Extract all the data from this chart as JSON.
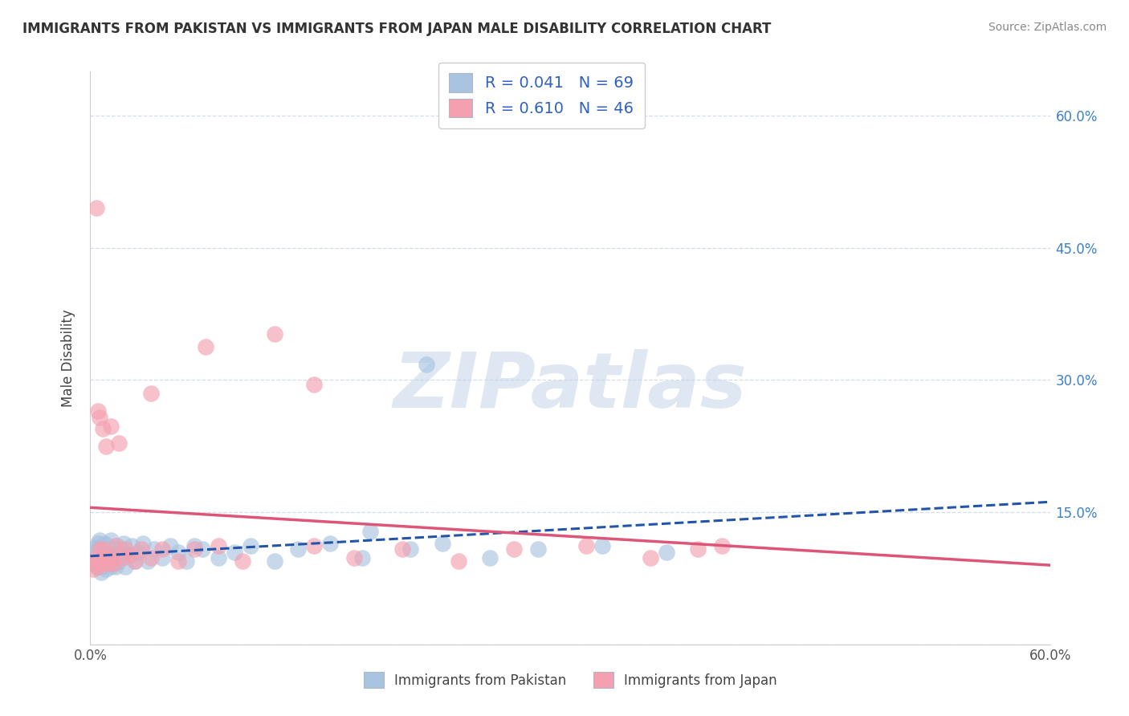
{
  "title": "IMMIGRANTS FROM PAKISTAN VS IMMIGRANTS FROM JAPAN MALE DISABILITY CORRELATION CHART",
  "source": "Source: ZipAtlas.com",
  "ylabel": "Male Disability",
  "y_ticks": [
    0.0,
    0.15,
    0.3,
    0.45,
    0.6
  ],
  "y_tick_labels": [
    "",
    "15.0%",
    "30.0%",
    "45.0%",
    "60.0%"
  ],
  "x_ticks": [
    0.0,
    0.15,
    0.3,
    0.45,
    0.6
  ],
  "x_tick_labels": [
    "0.0%",
    "",
    "",
    "",
    "60.0%"
  ],
  "pakistan_R": 0.041,
  "pakistan_N": 69,
  "japan_R": 0.61,
  "japan_N": 46,
  "pakistan_color": "#a8c4e0",
  "japan_color": "#f4a0b0",
  "pakistan_line_color": "#2255aa",
  "japan_line_color": "#dd5577",
  "watermark_text": "ZIPatlas",
  "watermark_color": "#c8d8ea",
  "legend_text_color": "#3060c0",
  "bottom_legend_pakistan": "Immigrants from Pakistan",
  "bottom_legend_japan": "Immigrants from Japan",
  "pakistan_x": [
    0.002,
    0.003,
    0.003,
    0.004,
    0.004,
    0.004,
    0.005,
    0.005,
    0.005,
    0.006,
    0.006,
    0.006,
    0.007,
    0.007,
    0.007,
    0.008,
    0.008,
    0.008,
    0.009,
    0.009,
    0.009,
    0.01,
    0.01,
    0.01,
    0.011,
    0.011,
    0.012,
    0.012,
    0.013,
    0.013,
    0.014,
    0.014,
    0.015,
    0.015,
    0.016,
    0.017,
    0.018,
    0.019,
    0.02,
    0.021,
    0.022,
    0.024,
    0.026,
    0.028,
    0.03,
    0.033,
    0.036,
    0.04,
    0.045,
    0.05,
    0.055,
    0.06,
    0.065,
    0.07,
    0.08,
    0.09,
    0.1,
    0.115,
    0.13,
    0.15,
    0.17,
    0.2,
    0.22,
    0.25,
    0.28,
    0.32,
    0.36,
    0.21,
    0.175
  ],
  "pakistan_y": [
    0.098,
    0.092,
    0.105,
    0.11,
    0.088,
    0.102,
    0.095,
    0.115,
    0.088,
    0.108,
    0.092,
    0.118,
    0.082,
    0.098,
    0.112,
    0.105,
    0.095,
    0.088,
    0.11,
    0.098,
    0.115,
    0.092,
    0.108,
    0.085,
    0.098,
    0.112,
    0.095,
    0.105,
    0.088,
    0.118,
    0.098,
    0.108,
    0.092,
    0.105,
    0.088,
    0.112,
    0.095,
    0.108,
    0.098,
    0.115,
    0.088,
    0.102,
    0.112,
    0.095,
    0.105,
    0.115,
    0.095,
    0.108,
    0.098,
    0.112,
    0.105,
    0.095,
    0.112,
    0.108,
    0.098,
    0.105,
    0.112,
    0.095,
    0.108,
    0.115,
    0.098,
    0.108,
    0.115,
    0.098,
    0.108,
    0.112,
    0.105,
    0.318,
    0.128
  ],
  "japan_x": [
    0.002,
    0.003,
    0.004,
    0.004,
    0.005,
    0.005,
    0.006,
    0.006,
    0.007,
    0.007,
    0.008,
    0.008,
    0.009,
    0.01,
    0.01,
    0.011,
    0.012,
    0.013,
    0.014,
    0.015,
    0.016,
    0.018,
    0.02,
    0.022,
    0.025,
    0.028,
    0.032,
    0.038,
    0.045,
    0.055,
    0.065,
    0.08,
    0.095,
    0.115,
    0.14,
    0.165,
    0.195,
    0.23,
    0.265,
    0.31,
    0.35,
    0.395,
    0.038,
    0.072,
    0.14,
    0.38
  ],
  "japan_y": [
    0.085,
    0.092,
    0.098,
    0.495,
    0.088,
    0.265,
    0.108,
    0.258,
    0.095,
    0.098,
    0.108,
    0.245,
    0.092,
    0.095,
    0.225,
    0.098,
    0.092,
    0.248,
    0.098,
    0.092,
    0.112,
    0.228,
    0.098,
    0.108,
    0.102,
    0.095,
    0.108,
    0.098,
    0.108,
    0.095,
    0.108,
    0.112,
    0.095,
    0.352,
    0.295,
    0.098,
    0.108,
    0.095,
    0.108,
    0.112,
    0.098,
    0.112,
    0.285,
    0.338,
    0.112,
    0.108
  ]
}
